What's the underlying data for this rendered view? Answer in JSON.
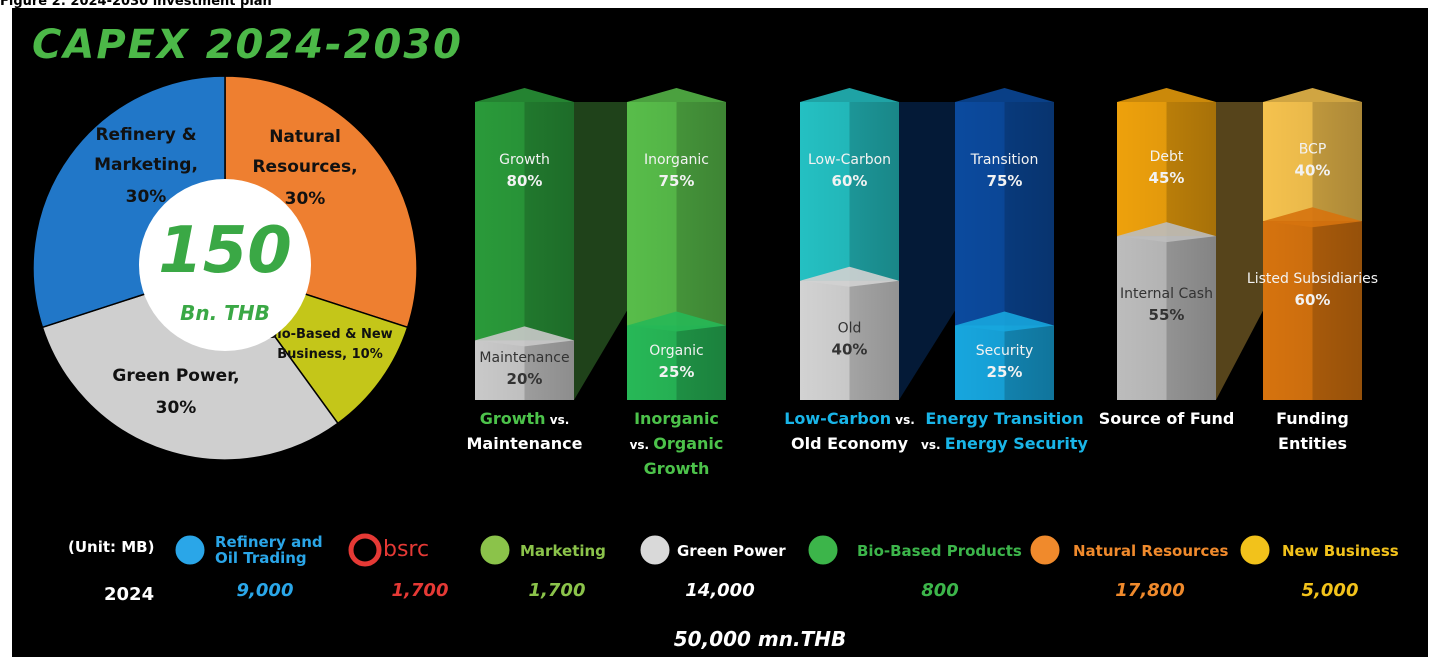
{
  "caption": "Figure 2: 2024-2030 investment plan",
  "chart_data": [
    {
      "type": "pie",
      "title": "CAPEX 2024-2030",
      "center_value": "150",
      "center_unit": "Bn. THB",
      "slices": [
        {
          "label_lines": [
            "Natural",
            "Resources,"
          ],
          "value": 30,
          "value_label": "30%",
          "color": "#ee7f30"
        },
        {
          "label_lines": [
            "Bio-Based & New",
            "Business,"
          ],
          "value": 10,
          "value_label": "10%",
          "color": "#c4c619"
        },
        {
          "label_lines": [
            "Green Power,"
          ],
          "value": 30,
          "value_label": "30%",
          "color": "#cfcfcf"
        },
        {
          "label_lines": [
            "Refinery &",
            "Marketing,"
          ],
          "value": 30,
          "value_label": "30%",
          "color": "#2177c8"
        }
      ]
    },
    {
      "type": "stacked_pair",
      "columns": [
        {
          "segments": [
            {
              "name": "Growth",
              "value": 80,
              "value_label": "80%",
              "color": "#2a9a3a"
            },
            {
              "name": "Maintenance",
              "value": 20,
              "value_label": "20%",
              "color": "#c9c9c9"
            }
          ],
          "caption": [
            [
              {
                "text": "Growth",
                "color": "#4cc24a"
              },
              {
                "text": " vs.",
                "color": "#ffffff"
              }
            ],
            [
              {
                "text": "Maintenance",
                "color": "#ffffff"
              }
            ]
          ]
        },
        {
          "segments": [
            {
              "name": "Inorganic",
              "value": 75,
              "value_label": "75%",
              "color": "#58bd4a"
            },
            {
              "name": "Organic",
              "value": 25,
              "value_label": "25%",
              "color": "#27b857"
            }
          ],
          "caption": [
            [
              {
                "text": "Inorganic",
                "color": "#4cc24a"
              }
            ],
            [
              {
                "text": "vs. ",
                "color": "#ffffff"
              },
              {
                "text": "Organic",
                "color": "#4cc24a"
              }
            ],
            [
              {
                "text": "Growth",
                "color": "#4cc24a"
              }
            ]
          ]
        }
      ]
    },
    {
      "type": "stacked_pair",
      "columns": [
        {
          "segments": [
            {
              "name": "Low-Carbon",
              "value": 60,
              "value_label": "60%",
              "color": "#24c0c2"
            },
            {
              "name": "Old",
              "value": 40,
              "value_label": "40%",
              "color": "#d2d2d2"
            }
          ],
          "caption": [
            [
              {
                "text": "Low-Carbon",
                "color": "#19b5e8"
              },
              {
                "text": " vs.",
                "color": "#ffffff"
              }
            ],
            [
              {
                "text": "Old Economy",
                "color": "#ffffff"
              }
            ]
          ]
        },
        {
          "segments": [
            {
              "name": "Transition",
              "value": 75,
              "value_label": "75%",
              "color": "#0b4a9e"
            },
            {
              "name": "Security",
              "value": 25,
              "value_label": "25%",
              "color": "#17a6de"
            }
          ],
          "caption": [
            [
              {
                "text": "Energy Transition",
                "color": "#19b5e8"
              }
            ],
            [
              {
                "text": "vs. ",
                "color": "#ffffff"
              },
              {
                "text": "Energy Security",
                "color": "#19b5e8"
              }
            ]
          ]
        }
      ]
    },
    {
      "type": "stacked_pair",
      "columns": [
        {
          "segments": [
            {
              "name": "Debt",
              "value": 45,
              "value_label": "45%",
              "color": "#eea10c"
            },
            {
              "name": "Internal Cash",
              "value": 55,
              "value_label": "55%",
              "color": "#bcbcbc"
            }
          ],
          "caption": [
            [
              {
                "text": "Source of Fund",
                "color": "#ffffff"
              }
            ]
          ]
        },
        {
          "segments": [
            {
              "name": "BCP",
              "value": 40,
              "value_label": "40%",
              "color": "#f5c24e"
            },
            {
              "name": "Listed Subsidiaries",
              "value": 60,
              "value_label": "60%",
              "color": "#d6730e"
            }
          ],
          "caption": [
            [
              {
                "text": "Funding",
                "color": "#ffffff"
              }
            ],
            [
              {
                "text": "Entities",
                "color": "#ffffff"
              }
            ]
          ]
        }
      ]
    }
  ],
  "units": {
    "unit": "(Unit: MB)",
    "year": "2024",
    "items": [
      {
        "name_lines": [
          "Refinery and",
          "Oil Trading"
        ],
        "value": 9000,
        "value_label": "9,000",
        "color": "#2aa6e8"
      },
      {
        "name_lines": [
          "bsrc"
        ],
        "value": 1700,
        "value_label": "1,700",
        "color": "#e53935"
      },
      {
        "name_lines": [
          "Marketing"
        ],
        "value": 1700,
        "value_label": "1,700",
        "color": "#8bc34a"
      },
      {
        "name_lines": [
          "Green Power"
        ],
        "value": 14000,
        "value_label": "14,000",
        "color": "#ffffff"
      },
      {
        "name_lines": [
          "Bio-Based Products"
        ],
        "value": 800,
        "value_label": "800",
        "color": "#3cb54a"
      },
      {
        "name_lines": [
          "Natural Resources"
        ],
        "value": 17800,
        "value_label": "17,800",
        "color": "#f08a2c"
      },
      {
        "name_lines": [
          "New Business"
        ],
        "value": 5000,
        "value_label": "5,000",
        "color": "#f2c21b"
      }
    ],
    "total": "50,000 mn.THB"
  }
}
